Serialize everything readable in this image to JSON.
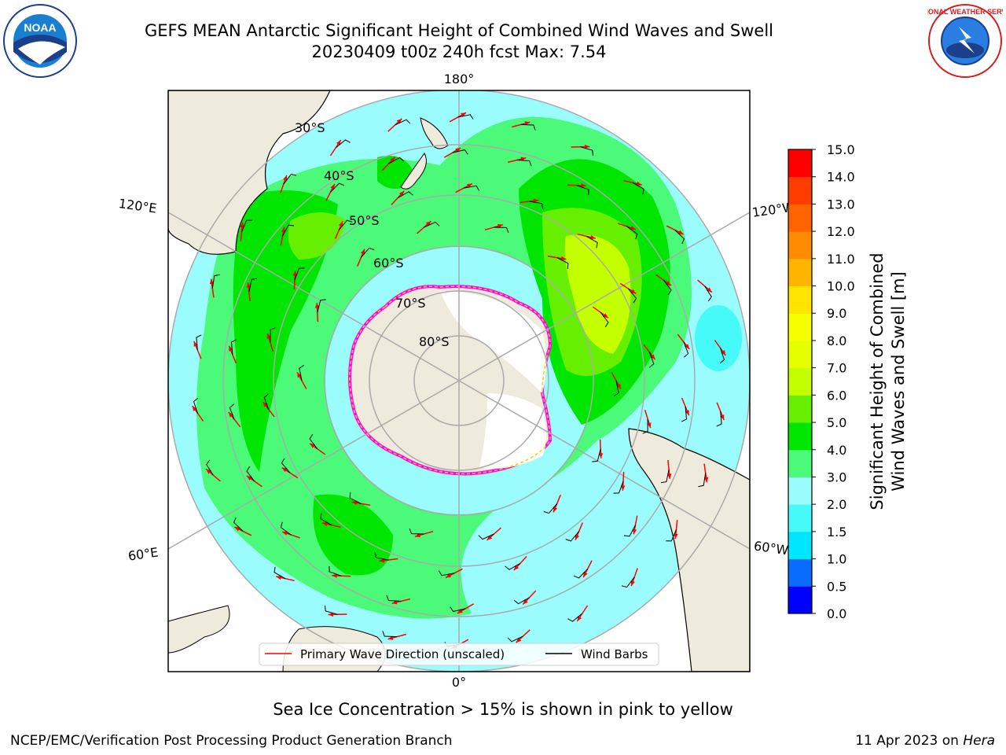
{
  "title_line1": "GEFS MEAN Antarctic Significant Height of Combined Wind Waves and Swell",
  "title_line2": "20230409 t00z 240h fcst   Max: 7.54",
  "logos": {
    "left": "NOAA",
    "right": "NATIONAL WEATHER SERVICE"
  },
  "meridian_labels": {
    "top": "180°",
    "bottom": "0°",
    "left_upper": "120°E",
    "left_lower": "60°E",
    "right_upper": "120°W",
    "right_lower": "60°W"
  },
  "latitude_labels": [
    "30°S",
    "40°S",
    "50°S",
    "60°S",
    "70°S",
    "80°S"
  ],
  "legend": {
    "wave": "Primary Wave Direction (unscaled)",
    "wind": "Wind Barbs"
  },
  "colorbar": {
    "label_line1": "Significant Height of Combined",
    "label_line2": "Wind Waves and Swell [m]",
    "ticks": [
      "0.0",
      "0.5",
      "1.0",
      "1.5",
      "2.0",
      "3.0",
      "4.0",
      "5.0",
      "6.0",
      "7.0",
      "8.0",
      "9.0",
      "10.0",
      "11.0",
      "12.0",
      "13.0",
      "14.0",
      "15.0"
    ],
    "colors": [
      "#0000ff",
      "#0a6cff",
      "#00e6ff",
      "#46fafa",
      "#9afcfc",
      "#4cfa7a",
      "#00e600",
      "#66f000",
      "#c4ff00",
      "#e6ff00",
      "#f5ff00",
      "#ffe400",
      "#ffb400",
      "#ff8c00",
      "#ff6400",
      "#ff3c00",
      "#ff0000"
    ]
  },
  "note": "Sea Ice Concentration > 15% is shown in pink to yellow",
  "footer_left": "NCEP/EMC/Verification Post Processing Product Generation Branch",
  "footer_date": "11 Apr 2023 on ",
  "footer_machine": "Hera"
}
